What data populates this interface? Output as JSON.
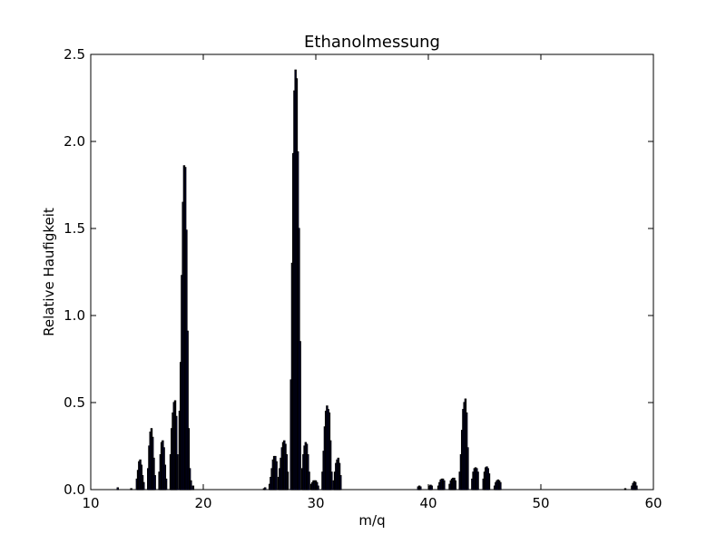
{
  "chart_data": {
    "type": "bar",
    "title": "Ethanolmessung",
    "xlabel": "m/q",
    "ylabel": "Relative Haufigkeit",
    "xlim": [
      10,
      60
    ],
    "ylim": [
      0,
      2.5
    ],
    "xticks": [
      "10",
      "20",
      "30",
      "40",
      "50",
      "60"
    ],
    "yticks": [
      "0.0",
      "0.5",
      "1.0",
      "1.5",
      "2.0",
      "2.5"
    ],
    "grid": false,
    "bar_color": "#0000ff",
    "edge_color": "#000000",
    "x": [
      12.4,
      13.6,
      14.1,
      14.2,
      14.3,
      14.4,
      14.5,
      14.6,
      14.7,
      15.1,
      15.2,
      15.3,
      15.4,
      15.5,
      15.6,
      15.7,
      16.1,
      16.2,
      16.3,
      16.4,
      16.5,
      16.6,
      16.7,
      17.1,
      17.2,
      17.3,
      17.4,
      17.5,
      17.6,
      17.7,
      17.9,
      18.0,
      18.1,
      18.2,
      18.3,
      18.4,
      18.5,
      18.6,
      18.7,
      18.8,
      18.9,
      19.1,
      25.4,
      25.5,
      25.9,
      26.0,
      26.1,
      26.2,
      26.3,
      26.4,
      26.5,
      26.7,
      26.8,
      26.9,
      27.0,
      27.1,
      27.2,
      27.3,
      27.4,
      27.5,
      27.8,
      27.9,
      28.0,
      28.1,
      28.2,
      28.3,
      28.4,
      28.5,
      28.6,
      28.8,
      28.9,
      29.0,
      29.1,
      29.2,
      29.3,
      29.4,
      29.6,
      29.7,
      29.8,
      29.9,
      30.0,
      30.1,
      30.2,
      30.6,
      30.7,
      30.8,
      30.9,
      31.0,
      31.1,
      31.2,
      31.3,
      31.4,
      31.6,
      31.7,
      31.8,
      31.9,
      32.0,
      32.1,
      32.2,
      39.1,
      39.2,
      39.3,
      40.1,
      40.2,
      40.3,
      40.9,
      41.0,
      41.1,
      41.2,
      41.3,
      41.4,
      41.9,
      42.0,
      42.1,
      42.2,
      42.3,
      42.4,
      42.8,
      42.9,
      43.0,
      43.1,
      43.2,
      43.3,
      43.4,
      43.5,
      43.9,
      44.0,
      44.1,
      44.2,
      44.3,
      44.4,
      44.9,
      45.0,
      45.1,
      45.2,
      45.3,
      45.4,
      45.9,
      46.0,
      46.1,
      46.2,
      46.3,
      46.4,
      57.5,
      58.1,
      58.2,
      58.3,
      58.4,
      58.5
    ],
    "values": [
      0.01,
      0.005,
      0.06,
      0.11,
      0.16,
      0.17,
      0.14,
      0.08,
      0.04,
      0.12,
      0.25,
      0.33,
      0.35,
      0.3,
      0.18,
      0.08,
      0.1,
      0.2,
      0.27,
      0.28,
      0.24,
      0.14,
      0.06,
      0.2,
      0.35,
      0.44,
      0.5,
      0.51,
      0.42,
      0.2,
      0.45,
      0.73,
      1.23,
      1.65,
      1.86,
      1.85,
      1.49,
      0.91,
      0.35,
      0.12,
      0.05,
      0.02,
      0.005,
      0.01,
      0.03,
      0.07,
      0.12,
      0.17,
      0.19,
      0.19,
      0.16,
      0.07,
      0.12,
      0.18,
      0.24,
      0.27,
      0.28,
      0.26,
      0.2,
      0.1,
      0.63,
      1.3,
      1.93,
      2.29,
      2.41,
      2.36,
      1.94,
      1.5,
      0.85,
      0.12,
      0.2,
      0.25,
      0.27,
      0.26,
      0.2,
      0.1,
      0.03,
      0.04,
      0.05,
      0.05,
      0.05,
      0.04,
      0.02,
      0.1,
      0.22,
      0.36,
      0.45,
      0.48,
      0.46,
      0.44,
      0.28,
      0.1,
      0.05,
      0.1,
      0.15,
      0.17,
      0.18,
      0.15,
      0.08,
      0.015,
      0.02,
      0.015,
      0.02,
      0.025,
      0.02,
      0.02,
      0.04,
      0.055,
      0.06,
      0.06,
      0.05,
      0.03,
      0.05,
      0.06,
      0.065,
      0.065,
      0.05,
      0.1,
      0.2,
      0.34,
      0.46,
      0.5,
      0.52,
      0.44,
      0.24,
      0.06,
      0.1,
      0.12,
      0.125,
      0.12,
      0.1,
      0.06,
      0.1,
      0.125,
      0.13,
      0.12,
      0.09,
      0.02,
      0.04,
      0.05,
      0.055,
      0.05,
      0.04,
      0.005,
      0.02,
      0.035,
      0.045,
      0.04,
      0.02
    ]
  }
}
